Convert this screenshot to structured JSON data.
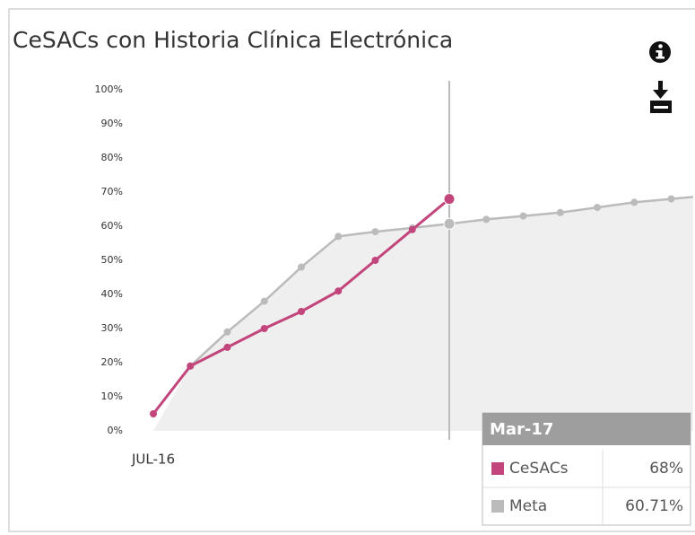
{
  "chart_data": {
    "type": "line",
    "title": "CeSACs con Historia Clínica Electrónica",
    "categories": [
      "JUL-16",
      null,
      null,
      null,
      null,
      null,
      null,
      null,
      null,
      null,
      null,
      null,
      null,
      null,
      null,
      null
    ],
    "series": [
      {
        "name": "CeSACs",
        "color": "#c2457c",
        "values": [
          5,
          19,
          24.5,
          30,
          35,
          41,
          50,
          59,
          68,
          null,
          null,
          null,
          null,
          null,
          null,
          null
        ]
      },
      {
        "name": "Meta",
        "color": "#bbbbbb",
        "values": [
          null,
          19,
          29,
          38,
          48,
          57,
          58.4,
          59.5,
          60.71,
          62,
          63,
          64,
          65.5,
          67,
          68,
          69
        ]
      }
    ],
    "ylim": [
      0,
      100
    ],
    "yticks": [
      {
        "value": 0,
        "label": "0%"
      },
      {
        "value": 10,
        "label": "10%"
      },
      {
        "value": 20,
        "label": "20%"
      },
      {
        "value": 30,
        "label": "30%"
      },
      {
        "value": 40,
        "label": "40%"
      },
      {
        "value": 50,
        "label": "50%"
      },
      {
        "value": 60,
        "label": "60%"
      },
      {
        "value": 70,
        "label": "70%"
      },
      {
        "value": 80,
        "label": "80%"
      },
      {
        "value": 90,
        "label": "90%"
      },
      {
        "value": 100,
        "label": "100%"
      }
    ],
    "tooltip": {
      "title": "Mar-17",
      "values": [
        "68%",
        "60.71%"
      ]
    }
  }
}
